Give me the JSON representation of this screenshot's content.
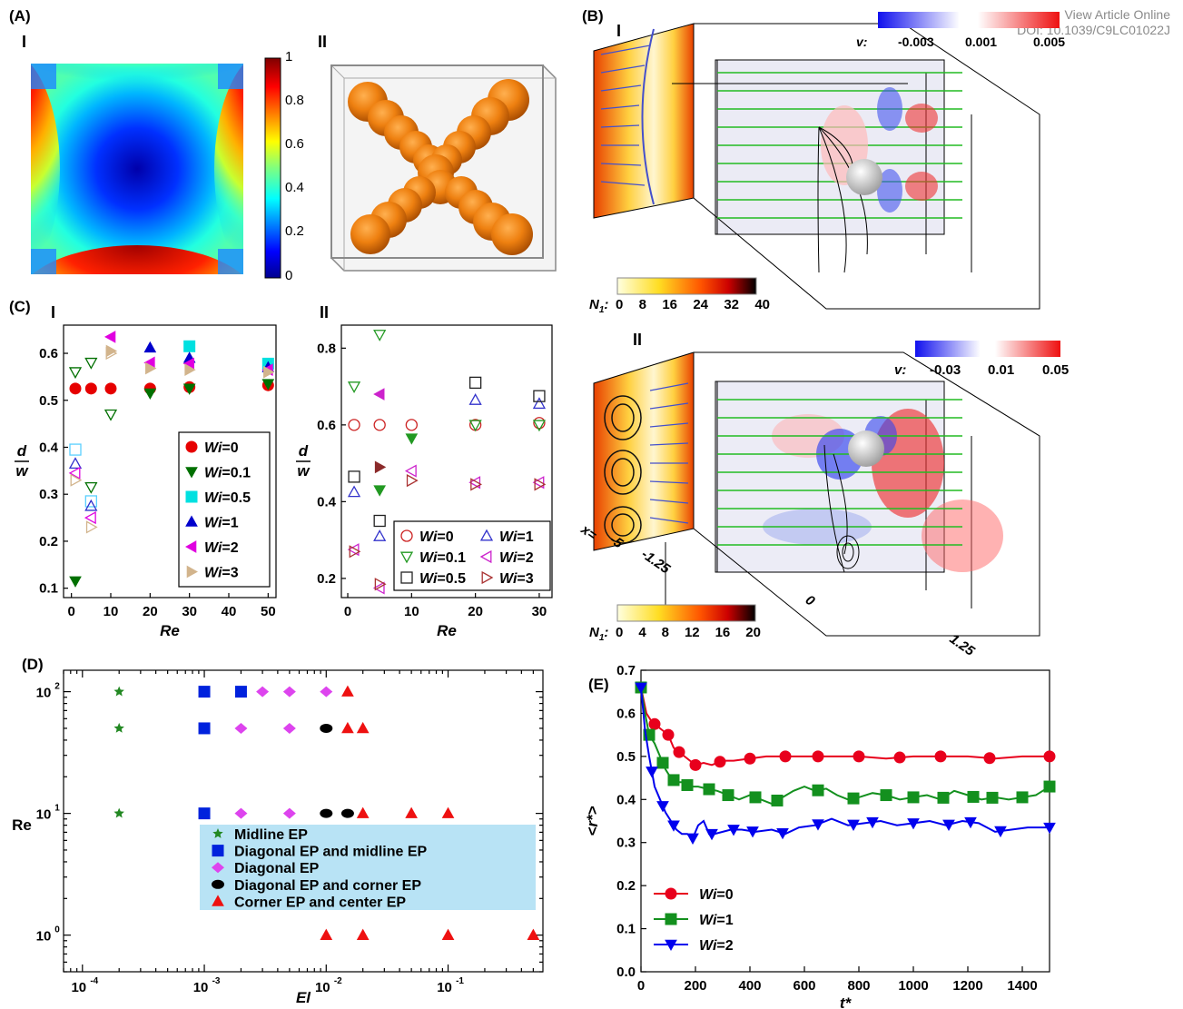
{
  "header": {
    "line1": "View Article Online",
    "line2": "DOI: 10.1039/C9LC01022J"
  },
  "panels": {
    "A": {
      "label": "(A)",
      "sub1": "I",
      "sub2": "II",
      "colorbar_ticks": [
        "1",
        "0.8",
        "0.6",
        "0.4",
        "0.2",
        "0"
      ]
    },
    "B": {
      "label": "(B)",
      "sub1": "I",
      "sub2": "II",
      "v_label": "v:",
      "v_ticks_top": [
        "-0.003",
        "0.001",
        "0.005"
      ],
      "v_ticks_bottom": [
        "-0.03",
        "0.01",
        "0.05"
      ],
      "n1_label": "N",
      "n1_sub": "1",
      "n1_ticks_top": [
        "0",
        "8",
        "16",
        "24",
        "32",
        "40"
      ],
      "n1_ticks_bottom": [
        "0",
        "4",
        "8",
        "12",
        "16",
        "20"
      ],
      "x_label": "x=",
      "x_ticks": [
        "-5",
        "-1.25",
        "0",
        "1.25"
      ]
    },
    "C": {
      "label": "(C)",
      "sub1": "I",
      "sub2": "II"
    },
    "D": {
      "label": "(D)"
    },
    "E": {
      "label": "(E)"
    }
  },
  "chart_data": [
    {
      "id": "C-I",
      "type": "scatter",
      "xlabel": "Re",
      "ylabel_num": "d",
      "ylabel_den": "w",
      "xlim": [
        -2,
        52
      ],
      "ylim": [
        0.08,
        0.66
      ],
      "xticks": [
        "0",
        "10",
        "20",
        "30",
        "40",
        "50"
      ],
      "yticks": [
        "0.1",
        "0.2",
        "0.3",
        "0.4",
        "0.5",
        "0.6"
      ],
      "series": [
        {
          "name": "Wi=0",
          "marker": "circle-filled",
          "color": "#e60000",
          "points": [
            [
              1,
              0.525
            ],
            [
              5,
              0.525
            ],
            [
              10,
              0.525
            ],
            [
              20,
              0.525
            ],
            [
              30,
              0.528
            ],
            [
              50,
              0.532
            ]
          ]
        },
        {
          "name": "Wi=0.1",
          "marker": "tri-down-filled",
          "color": "#007000",
          "points": [
            [
              1,
              0.115
            ],
            [
              20,
              0.515
            ],
            [
              30,
              0.525
            ],
            [
              50,
              0.535
            ]
          ]
        },
        {
          "name": "Wi=0.5",
          "marker": "square-filled",
          "color": "#00e0e0",
          "points": [
            [
              30,
              0.615
            ],
            [
              50,
              0.578
            ]
          ]
        },
        {
          "name": "Wi=1",
          "marker": "tri-up-filled",
          "color": "#0000cc",
          "points": [
            [
              20,
              0.612
            ],
            [
              30,
              0.59
            ],
            [
              50,
              0.57
            ]
          ]
        },
        {
          "name": "Wi=2",
          "marker": "tri-left-filled",
          "color": "#e000e0",
          "points": [
            [
              10,
              0.635
            ],
            [
              20,
              0.58
            ],
            [
              30,
              0.578
            ],
            [
              50,
              0.565
            ]
          ]
        },
        {
          "name": "Wi=3",
          "marker": "tri-right-filled",
          "color": "#d2b48c",
          "points": [
            [
              10,
              0.605
            ],
            [
              20,
              0.568
            ],
            [
              30,
              0.565
            ],
            [
              50,
              0.56
            ]
          ]
        },
        {
          "name": "",
          "marker": "tri-down-open",
          "color": "#007000",
          "points": [
            [
              1,
              0.56
            ],
            [
              5,
              0.58
            ],
            [
              10,
              0.47
            ],
            [
              5,
              0.315
            ]
          ]
        },
        {
          "name": "",
          "marker": "square-open",
          "color": "#5ad0ff",
          "points": [
            [
              1,
              0.395
            ],
            [
              5,
              0.285
            ]
          ]
        },
        {
          "name": "",
          "marker": "tri-up-open",
          "color": "#3030cc",
          "points": [
            [
              1,
              0.365
            ],
            [
              5,
              0.275
            ]
          ]
        },
        {
          "name": "",
          "marker": "tri-left-open",
          "color": "#e000e0",
          "points": [
            [
              1,
              0.345
            ],
            [
              5,
              0.25
            ]
          ]
        },
        {
          "name": "",
          "marker": "tri-right-open",
          "color": "#d2b48c",
          "points": [
            [
              1,
              0.33
            ],
            [
              5,
              0.23
            ],
            [
              10,
              0.6
            ]
          ]
        }
      ],
      "legend": {
        "position": "lower-right"
      }
    },
    {
      "id": "C-II",
      "type": "scatter",
      "xlabel": "Re",
      "ylabel_num": "d",
      "ylabel_den": "w",
      "xlim": [
        -1,
        32
      ],
      "ylim": [
        0.15,
        0.86
      ],
      "xticks": [
        "0",
        "10",
        "20",
        "30"
      ],
      "yticks": [
        "0.2",
        "0.4",
        "0.6",
        "0.8"
      ],
      "series": [
        {
          "name": "Wi=0",
          "marker": "circle-open",
          "color": "#cc2222",
          "points": [
            [
              1,
              0.6
            ],
            [
              5,
              0.6
            ],
            [
              10,
              0.6
            ],
            [
              20,
              0.6
            ],
            [
              30,
              0.605
            ]
          ]
        },
        {
          "name": "Wi=1",
          "marker": "tri-up-open",
          "color": "#3333cc",
          "points": [
            [
              1,
              0.425
            ],
            [
              5,
              0.31
            ],
            [
              20,
              0.665
            ],
            [
              30,
              0.655
            ]
          ]
        },
        {
          "name": "Wi=0.1",
          "marker": "tri-down-open",
          "color": "#229922",
          "points": [
            [
              1,
              0.7
            ],
            [
              5,
              0.835
            ],
            [
              20,
              0.6
            ],
            [
              30,
              0.6
            ]
          ]
        },
        {
          "name": "Wi=2",
          "marker": "tri-left-open",
          "color": "#cc22cc",
          "points": [
            [
              1,
              0.275
            ],
            [
              5,
              0.175
            ],
            [
              10,
              0.48
            ],
            [
              20,
              0.45
            ],
            [
              30,
              0.45
            ]
          ]
        },
        {
          "name": "Wi=0.5",
          "marker": "square-open",
          "color": "#222222",
          "points": [
            [
              1,
              0.465
            ],
            [
              5,
              0.35
            ],
            [
              20,
              0.71
            ],
            [
              30,
              0.675
            ]
          ]
        },
        {
          "name": "Wi=3",
          "marker": "tri-right-open",
          "color": "#aa3333",
          "points": [
            [
              1,
              0.27
            ],
            [
              5,
              0.185
            ],
            [
              10,
              0.455
            ],
            [
              20,
              0.445
            ],
            [
              30,
              0.445
            ]
          ]
        },
        {
          "name": "",
          "marker": "tri-left-filled",
          "color": "#cc22cc",
          "points": [
            [
              5,
              0.68
            ]
          ]
        },
        {
          "name": "",
          "marker": "tri-down-filled",
          "color": "#229922",
          "points": [
            [
              5,
              0.43
            ],
            [
              10,
              0.565
            ]
          ]
        },
        {
          "name": "",
          "marker": "tri-right-filled",
          "color": "#8b2a2a",
          "points": [
            [
              5,
              0.49
            ]
          ]
        }
      ],
      "legend": {
        "position": "lower-right",
        "columns": 2
      }
    },
    {
      "id": "D",
      "type": "scatter",
      "xlabel": "El",
      "ylabel": "Re",
      "xscale": "log",
      "yscale": "log",
      "xlim": [
        7e-05,
        0.6
      ],
      "ylim": [
        0.5,
        150
      ],
      "xticks": [
        0.0001,
        0.001,
        0.01,
        0.1
      ],
      "yticks": [
        1,
        10,
        100
      ],
      "xtick_mantissa": "10",
      "xtick_exps": [
        "-4",
        "-3",
        "-2",
        "-1"
      ],
      "ytick_exps": [
        "0",
        "1",
        "2"
      ],
      "series": [
        {
          "name": "Midline EP",
          "marker": "star",
          "color": "#228822",
          "points": [
            [
              0.0002,
              100
            ],
            [
              0.0002,
              50
            ],
            [
              0.0002,
              10
            ]
          ]
        },
        {
          "name": "Diagonal EP and midline EP",
          "marker": "square-filled",
          "color": "#0022dd",
          "points": [
            [
              0.001,
              100
            ],
            [
              0.002,
              100
            ],
            [
              0.001,
              50
            ],
            [
              0.001,
              10
            ]
          ]
        },
        {
          "name": "Diagonal EP",
          "marker": "diamond",
          "color": "#dd44ee",
          "points": [
            [
              0.003,
              100
            ],
            [
              0.005,
              100
            ],
            [
              0.01,
              100
            ],
            [
              0.002,
              50
            ],
            [
              0.005,
              50
            ],
            [
              0.002,
              10
            ],
            [
              0.005,
              10
            ]
          ]
        },
        {
          "name": "Diagonal EP and corner EP",
          "marker": "ellipse",
          "color": "#000000",
          "points": [
            [
              0.01,
              50
            ],
            [
              0.01,
              10
            ],
            [
              0.015,
              10
            ]
          ]
        },
        {
          "name": "Corner EP and center EP",
          "marker": "tri-up-filled",
          "color": "#ee1111",
          "points": [
            [
              0.015,
              100
            ],
            [
              0.015,
              50
            ],
            [
              0.02,
              50
            ],
            [
              0.02,
              10
            ],
            [
              0.05,
              10
            ],
            [
              0.1,
              10
            ],
            [
              0.01,
              1
            ],
            [
              0.02,
              1
            ],
            [
              0.1,
              1
            ],
            [
              0.5,
              1
            ]
          ]
        }
      ],
      "legend": {
        "position": "center-right",
        "background": "#b8e3f5"
      }
    },
    {
      "id": "E",
      "type": "line",
      "xlabel": "t*",
      "ylabel": "<r*>",
      "xlim": [
        0,
        1500
      ],
      "ylim": [
        0.0,
        0.7
      ],
      "xticks": [
        "0",
        "200",
        "400",
        "600",
        "800",
        "1000",
        "1200",
        "1400"
      ],
      "yticks": [
        "0.0",
        "0.1",
        "0.2",
        "0.3",
        "0.4",
        "0.5",
        "0.6",
        "0.7"
      ],
      "series": [
        {
          "name": "Wi=0",
          "marker": "circle-filled",
          "color": "#e8001c",
          "x": [
            0,
            20,
            40,
            60,
            80,
            100,
            120,
            140,
            160,
            180,
            200,
            230,
            260,
            300,
            340,
            400,
            460,
            520,
            600,
            700,
            800,
            900,
            1000,
            1100,
            1200,
            1300,
            1400,
            1500
          ],
          "y": [
            0.66,
            0.6,
            0.58,
            0.57,
            0.56,
            0.55,
            0.52,
            0.51,
            0.5,
            0.49,
            0.48,
            0.485,
            0.48,
            0.49,
            0.49,
            0.495,
            0.5,
            0.5,
            0.5,
            0.5,
            0.5,
            0.495,
            0.5,
            0.5,
            0.5,
            0.495,
            0.5,
            0.5
          ],
          "marker_x": [
            0,
            50,
            100,
            140,
            200,
            290,
            400,
            530,
            650,
            800,
            950,
            1100,
            1280,
            1500
          ]
        },
        {
          "name": "Wi=1",
          "marker": "square-filled",
          "color": "#13901e",
          "x": [
            0,
            15,
            30,
            50,
            70,
            90,
            110,
            130,
            150,
            180,
            210,
            240,
            280,
            320,
            360,
            400,
            440,
            480,
            520,
            560,
            600,
            640,
            680,
            720,
            760,
            800,
            850,
            900,
            950,
            1000,
            1050,
            1100,
            1150,
            1200,
            1250,
            1300,
            1350,
            1400,
            1450,
            1500
          ],
          "y": [
            0.66,
            0.6,
            0.55,
            0.53,
            0.5,
            0.47,
            0.45,
            0.44,
            0.44,
            0.43,
            0.43,
            0.425,
            0.42,
            0.41,
            0.4,
            0.41,
            0.4,
            0.39,
            0.405,
            0.42,
            0.43,
            0.42,
            0.425,
            0.41,
            0.4,
            0.405,
            0.415,
            0.41,
            0.4,
            0.405,
            0.41,
            0.4,
            0.42,
            0.41,
            0.4,
            0.405,
            0.4,
            0.405,
            0.41,
            0.43
          ],
          "marker_x": [
            0,
            30,
            80,
            120,
            170,
            250,
            320,
            420,
            500,
            650,
            780,
            900,
            1000,
            1110,
            1220,
            1290,
            1400,
            1500
          ]
        },
        {
          "name": "Wi=2",
          "marker": "tri-down-filled",
          "color": "#0000ee",
          "x": [
            0,
            15,
            30,
            50,
            70,
            90,
            110,
            130,
            150,
            170,
            190,
            210,
            230,
            250,
            270,
            300,
            330,
            370,
            420,
            480,
            530,
            580,
            640,
            700,
            760,
            820,
            880,
            940,
            1000,
            1060,
            1120,
            1180,
            1240,
            1300,
            1360,
            1420,
            1500
          ],
          "y": [
            0.66,
            0.56,
            0.5,
            0.43,
            0.4,
            0.37,
            0.35,
            0.33,
            0.32,
            0.32,
            0.31,
            0.34,
            0.35,
            0.32,
            0.32,
            0.325,
            0.33,
            0.33,
            0.325,
            0.33,
            0.32,
            0.335,
            0.34,
            0.355,
            0.34,
            0.345,
            0.35,
            0.34,
            0.345,
            0.35,
            0.34,
            0.35,
            0.345,
            0.325,
            0.33,
            0.335,
            0.335
          ],
          "marker_x": [
            0,
            40,
            80,
            120,
            190,
            260,
            340,
            410,
            520,
            650,
            780,
            850,
            1000,
            1130,
            1210,
            1320,
            1500
          ]
        }
      ],
      "legend": {
        "position": "lower-left"
      }
    }
  ]
}
